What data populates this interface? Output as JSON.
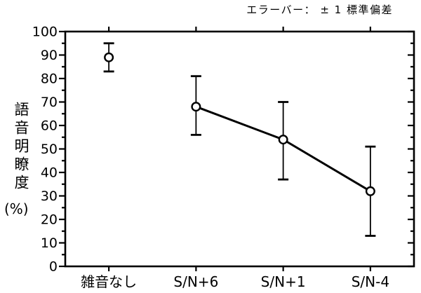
{
  "chart_data": {
    "type": "line",
    "title": "",
    "annotation": "エラーバー： ± 1 標準偏差",
    "ylabel": "語音明瞭度",
    "ylabel_unit": "(%)",
    "xlabel": "",
    "categories": [
      "雑音なし",
      "S/N+6",
      "S/N+1",
      "S/N-4"
    ],
    "series": [
      {
        "name": "語音明瞭度(%)",
        "values": [
          89,
          68,
          54,
          32
        ],
        "error_upper": [
          95,
          81,
          70,
          51
        ],
        "error_lower": [
          83,
          56,
          37,
          13
        ],
        "connect_from_index": 1
      }
    ],
    "ylim": [
      0,
      100
    ],
    "ytick_interval": 10,
    "yminor_interval": 5,
    "grid": false,
    "legend_position": "none",
    "marker": "open-circle",
    "colors": {
      "line": "#000000",
      "marker_fill": "#ffffff",
      "marker_stroke": "#000000",
      "axis": "#000000",
      "background": "#ffffff",
      "text": "#000000"
    }
  }
}
